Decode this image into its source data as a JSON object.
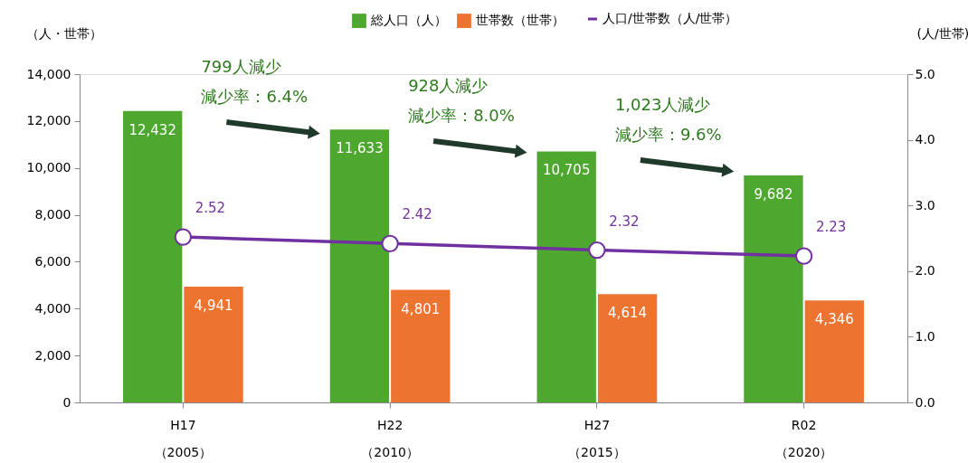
{
  "chart_data": {
    "type": "bar",
    "categories": [
      "H17\n（2005）",
      "H22\n（2010）",
      "H27\n（2015）",
      "R02\n（2020）"
    ],
    "ylabel": "（人・世帯）",
    "y2label": "(人/世帯)",
    "series": [
      {
        "name": "総人口（人）",
        "color": "#4ea72e",
        "values": [
          12432,
          11633,
          10705,
          9682
        ],
        "value_labels": [
          "12,432",
          "11,633",
          "10,705",
          "9,682"
        ]
      },
      {
        "name": "世帯数（世帯）",
        "color": "#ed7331",
        "values": [
          4941,
          4801,
          4614,
          4346
        ],
        "value_labels": [
          "4,941",
          "4,801",
          "4,614",
          "4,346"
        ]
      },
      {
        "name": "人口/世帯数（人/世帯）",
        "type": "line",
        "axis": "y2",
        "color": "#7030a0",
        "marker": "circle",
        "line_style": "solid",
        "values": [
          2.52,
          2.42,
          2.32,
          2.23
        ],
        "value_labels": [
          "2.52",
          "2.42",
          "2.32",
          "2.23"
        ]
      }
    ],
    "ylim": [
      0,
      14000
    ],
    "yticks": [
      {
        "value": 0,
        "label": "0"
      },
      {
        "value": 2000,
        "label": "2,000"
      },
      {
        "value": 4000,
        "label": "4,000"
      },
      {
        "value": 6000,
        "label": "6,000"
      },
      {
        "value": 8000,
        "label": "8,000"
      },
      {
        "value": 10000,
        "label": "10,000"
      },
      {
        "value": 12000,
        "label": "12,000"
      },
      {
        "value": 14000,
        "label": "14,000"
      }
    ],
    "y2lim": [
      0,
      5
    ],
    "y2ticks": [
      {
        "value": 0,
        "label": "0.0"
      },
      {
        "value": 1,
        "label": "1.0"
      },
      {
        "value": 2,
        "label": "2.0"
      },
      {
        "value": 3,
        "label": "3.0"
      },
      {
        "value": 4,
        "label": "4.0"
      },
      {
        "value": 5,
        "label": "5.0"
      }
    ],
    "annotations": [
      "799人減少",
      "減少率：6.4%",
      "928人減少",
      "減少率：8.0%",
      "1,023人減少",
      "減少率：9.6%"
    ],
    "legend": "top",
    "grid": false
  }
}
